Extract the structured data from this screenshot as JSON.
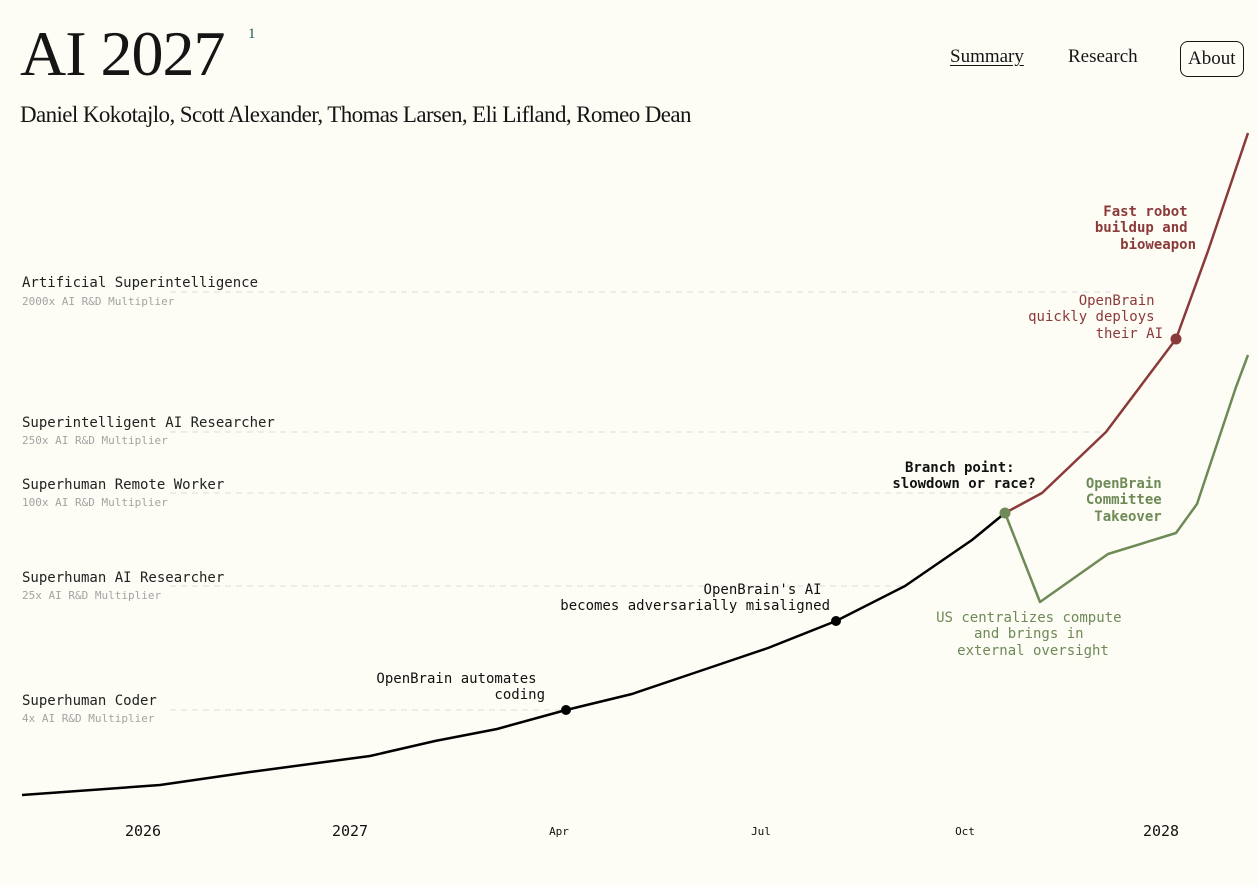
{
  "header": {
    "title": "AI 2027",
    "footnote": "1",
    "authors": "Daniel Kokotajlo, Scott Alexander, Thomas Larsen, Eli Lifland, Romeo Dean"
  },
  "nav": {
    "summary": "Summary",
    "research": "Research",
    "about": "About"
  },
  "colors": {
    "background": "#fdfcf5",
    "main_line": "#000000",
    "race_line": "#8b3a3a",
    "slowdown_line": "#6e8a57",
    "milestone_text": "#222222",
    "multiplier_text": "#a3a3a3",
    "dashed_guide": "#dddddd"
  },
  "chart_data": {
    "type": "line",
    "x_ticks": [
      "2026",
      "2027",
      "Apr",
      "Jul",
      "Oct",
      "2028"
    ],
    "milestones": [
      {
        "label": "Artificial Superintelligence",
        "multiplier": "2000x AI R&D Multiplier"
      },
      {
        "label": "Superintelligent AI Researcher",
        "multiplier": "250x AI R&D Multiplier"
      },
      {
        "label": "Superhuman Remote Worker",
        "multiplier": "100x AI R&D Multiplier"
      },
      {
        "label": "Superhuman AI Researcher",
        "multiplier": "25x AI R&D Multiplier"
      },
      {
        "label": "Superhuman Coder",
        "multiplier": "4x AI R&D Multiplier"
      }
    ],
    "annotations": {
      "automates_coding": [
        "OpenBrain automates",
        "coding"
      ],
      "misaligned": [
        "OpenBrain's AI",
        "becomes adversarially misaligned"
      ],
      "branch_point": [
        "Branch point:",
        "slowdown or race?"
      ],
      "us_centralizes": [
        "US centralizes compute",
        "and brings in",
        "external oversight"
      ],
      "committee_takeover": [
        "OpenBrain",
        "Committee",
        "Takeover"
      ],
      "quickly_deploys": [
        "OpenBrain",
        "quickly deploys",
        "their AI"
      ],
      "robot_buildup": [
        "Fast robot",
        "buildup and",
        "bioweapon"
      ]
    }
  }
}
